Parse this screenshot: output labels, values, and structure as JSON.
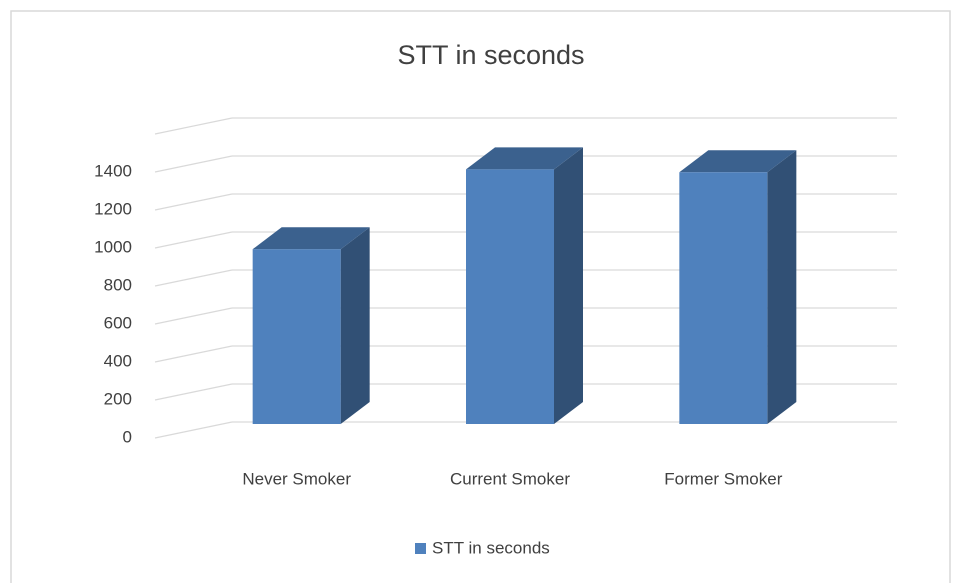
{
  "chart_data": {
    "type": "bar3d",
    "title": "STT in seconds",
    "categories": [
      "Never Smoker",
      "Current  Smoker",
      "Former Smoker"
    ],
    "series": [
      {
        "name": "STT in seconds",
        "color": "#4f81bd",
        "values": [
          920,
          1340,
          1325
        ]
      }
    ],
    "ylim": [
      0,
      1600
    ],
    "yticks": [
      0,
      200,
      400,
      600,
      800,
      1000,
      1200,
      1400
    ],
    "grid": true,
    "legend": "bottom"
  }
}
